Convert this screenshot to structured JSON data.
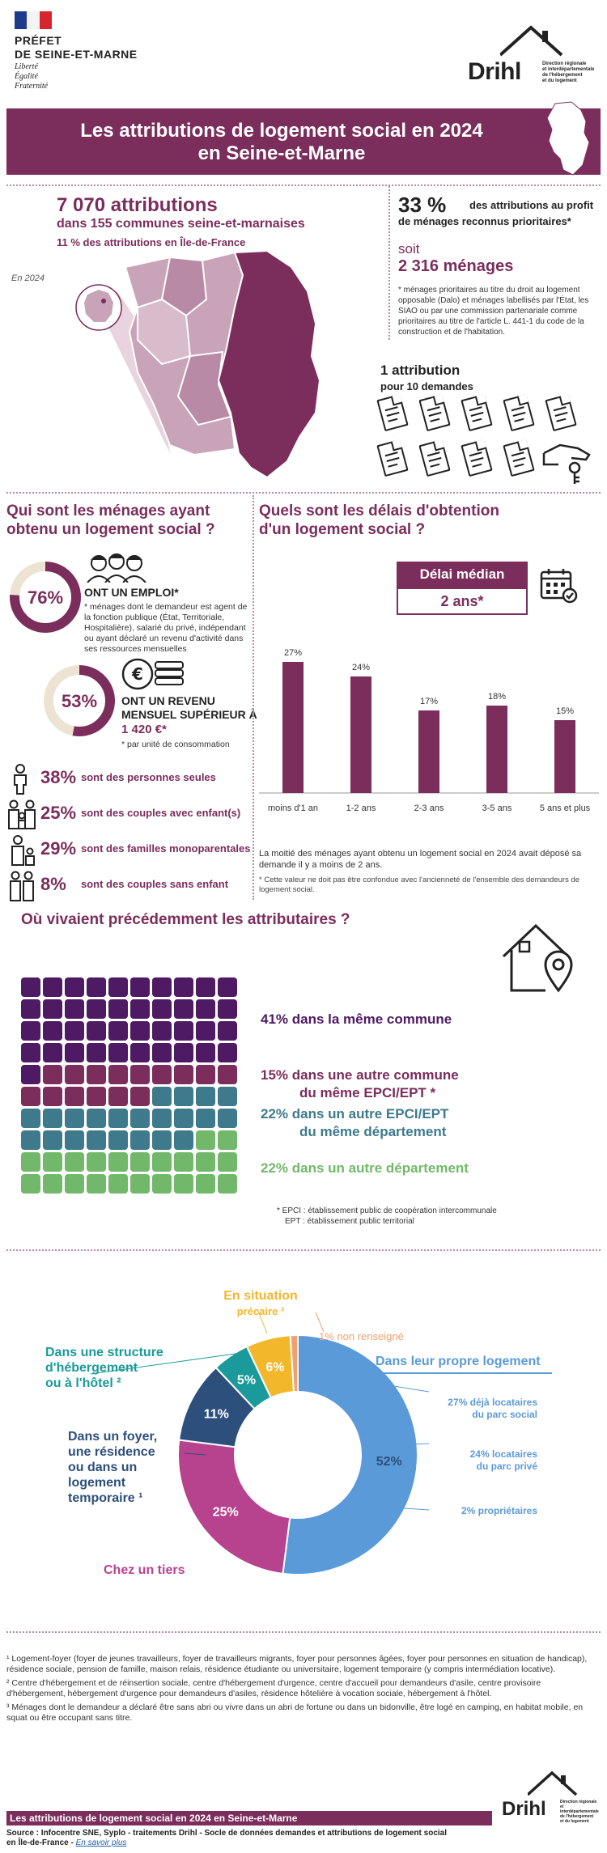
{
  "header": {
    "prefet_line1": "PRÉFET",
    "prefet_line2": "DE SEINE-ET-MARNE",
    "motto": [
      "Liberté",
      "Égalité",
      "Fraternité"
    ],
    "drihl": "Drihl",
    "drihl_sub": [
      "Direction régionale",
      "et interdépartementale",
      "de l'hébergement",
      "et du logement"
    ]
  },
  "banner": {
    "title_line1": "Les attributions de logement social en 2024",
    "title_line2": "en Seine-et-Marne"
  },
  "summary": {
    "attributions": "7 070 attributions",
    "communes": "dans 155 communes seine-et-marnaises",
    "idf_share": "11 % des attributions en Île-de-France",
    "year_label": "En 2024",
    "priority_pct": "33 %",
    "priority_text1": "des attributions au profit",
    "priority_text2": "de ménages reconnus prioritaires*",
    "soit": "soit",
    "menages": "2 316 ménages",
    "priority_note": "* ménages prioritaires au titre du droit au logement opposable (Dalo) et ménages labellisés par l'État, les SIAO ou par une commission partenariale comme prioritaires au titre de l'article L. 441-1 du code de la construction et de l'habitation.",
    "ratio_title": "1 attribution",
    "ratio_sub": "pour 10 demandes"
  },
  "households": {
    "title_line1": "Qui sont les ménages ayant",
    "title_line2": "obtenu un logement social ?",
    "employment_pct": "76%",
    "employment_label": "ONT UN EMPLOI*",
    "employment_note": "* ménages dont le demandeur est agent de la fonction publique (État, Territoriale, Hospitalière), salarié du privé, indépendant ou ayant déclaré un revenu d'activité dans ses ressources mensuelles",
    "employment_value": 0.76,
    "income_pct": "53%",
    "income_label1": "ONT UN REVENU",
    "income_label2": "MENSUEL SUPÉRIEUR À",
    "income_amount": "1 420 €*",
    "income_note": "* par unité de consommation",
    "income_value": 0.53,
    "composition": [
      {
        "pct": "38%",
        "label": "sont des personnes seules"
      },
      {
        "pct": "25%",
        "label": "sont des couples avec enfant(s)"
      },
      {
        "pct": "29%",
        "label": "sont des familles monoparentales"
      },
      {
        "pct": "8%",
        "label": "sont des couples sans enfant"
      }
    ]
  },
  "delays": {
    "title_line1": "Quels sont les délais d'obtention",
    "title_line2": "d'un logement social ?",
    "median_label": "Délai médian",
    "median_value": "2 ans*",
    "text": "La moitié des ménages ayant obtenu un logement social en 2024 avait déposé sa demande il y a moins de 2 ans.",
    "note": "* Cette valeur ne doit pas être confondue avec l'ancienneté de l'ensemble des demandeurs de logement social."
  },
  "origin": {
    "title": "Où vivaient précédemment les attributaires ?",
    "items": [
      {
        "line1": "41% dans la même commune",
        "line2": "",
        "color": "#4e1a63"
      },
      {
        "line1": "15% dans une autre commune",
        "line2": "du même EPCI/EPT *",
        "color": "#7b2d5c"
      },
      {
        "line1": "22% dans un autre EPCI/EPT",
        "line2": "du même département",
        "color": "#3e7a8c"
      },
      {
        "line1": "22% dans un autre département",
        "line2": "",
        "color": "#72b86a"
      }
    ],
    "grid_counts": [
      41,
      15,
      22,
      22
    ],
    "note_line1": "* EPCI : établissement public de coopération intercommunale",
    "note_line2": "EPT : établissement public territorial"
  },
  "housing": {
    "labels": {
      "precaire": [
        "En situation",
        "précaire ³"
      ],
      "hebergement": [
        "Dans une structure",
        "d'hébergement",
        "ou à l'hôtel ²"
      ],
      "foyer": [
        "Dans un foyer,",
        "une résidence",
        "ou dans un",
        "logement",
        "temporaire ¹"
      ],
      "tiers": "Chez un tiers",
      "non_renseigne": "1% non renseigné",
      "propre": "Dans leur propre logement",
      "sub1": [
        "27% déjà locataires",
        "du parc social"
      ],
      "sub2": [
        "24% locataires",
        "du parc privé"
      ],
      "sub3": "2% propriétaires"
    }
  },
  "chart_data": [
    {
      "type": "bar",
      "title": "",
      "categories": [
        "moins d'1 an",
        "1-2 ans",
        "2-3 ans",
        "3-5 ans",
        "5 ans et plus"
      ],
      "values": [
        27,
        24,
        17,
        18,
        15
      ],
      "value_labels": [
        "27%",
        "24%",
        "17%",
        "18%",
        "15%"
      ],
      "ylim": [
        0,
        30
      ],
      "grid": false,
      "color": "#7b2d5c"
    },
    {
      "type": "pie",
      "title": "",
      "slices": [
        {
          "label": "Dans leur propre logement",
          "value": 52,
          "display": "52%",
          "color": "#5b9ad8"
        },
        {
          "label": "Chez un tiers",
          "value": 25,
          "display": "25%",
          "color": "#b7428e"
        },
        {
          "label": "Dans un foyer, une résidence ou dans un logement temporaire",
          "value": 11,
          "display": "11%",
          "color": "#2d4f7c"
        },
        {
          "label": "Dans une structure d'hébergement ou à l'hôtel",
          "value": 5,
          "display": "5%",
          "color": "#1a9a9a"
        },
        {
          "label": "En situation précaire",
          "value": 6,
          "display": "6%",
          "color": "#f2b72b"
        },
        {
          "label": "non renseigné",
          "value": 1,
          "display": "",
          "color": "#f0a070"
        }
      ]
    }
  ],
  "footnotes": [
    "¹ Logement-foyer (foyer de jeunes travailleurs, foyer de travailleurs migrants, foyer pour personnes âgées, foyer pour personnes en situation de handicap), résidence sociale, pension de famille, maison relais, résidence étudiante ou universitaire, logement temporaire (y compris intermédiation locative).",
    "² Centre d'hébergement et de réinsertion sociale, centre d'hébergement d'urgence, centre d'accueil pour demandeurs d'asile, centre provisoire d'hébergement, hébergement d'urgence pour demandeurs d'asiles, résidence hôtelière à vocation sociale, hébergement à l'hôtel.",
    "³ Ménages dont le demandeur a déclaré être sans abri ou vivre dans un abri de fortune ou dans un bidonville, être logé en camping, en habitat mobile, en squat ou être occupant sans titre."
  ],
  "footer": {
    "band": "Les attributions de logement social en 2024 en Seine-et-Marne",
    "source": "Source : Infocentre SNE, Syplo - traitements Drihl - Socle de données demandes et attributions de logement social",
    "source2": "en Île-de-France - ",
    "link": "En savoir plus"
  },
  "colors": {
    "plum": "#7b2d5c",
    "blue": "#5b9ad8"
  }
}
